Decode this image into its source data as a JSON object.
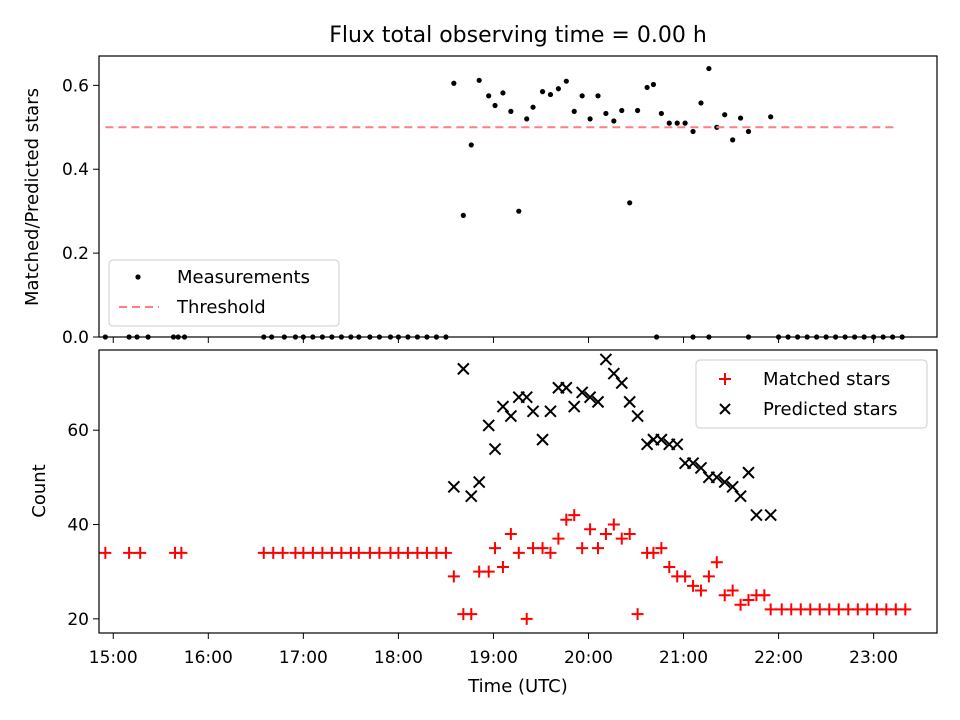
{
  "chart_data": [
    {
      "type": "scatter",
      "title": "Flux total observing time = 0.00 h",
      "xlabel": "",
      "ylabel": "Matched/Predicted stars",
      "xlim": [
        "14:51",
        "23:40"
      ],
      "ylim": [
        0,
        0.67
      ],
      "yticks": [
        "0.0",
        "0.2",
        "0.4",
        "0.6"
      ],
      "ytick_values": [
        0,
        0.2,
        0.4,
        0.6
      ],
      "legend_position": "lower-left",
      "legend": [
        "Measurements",
        "Threshold"
      ],
      "colors": {
        "measurements": "#000000",
        "threshold": "#ff7f7f"
      },
      "series": [
        {
          "name": "Measurements",
          "marker": "dot",
          "x": [
            "14:55",
            "15:10",
            "15:15",
            "15:22",
            "15:38",
            "15:41",
            "15:45",
            "16:35",
            "16:40",
            "16:48",
            "16:55",
            "17:00",
            "17:06",
            "17:12",
            "17:18",
            "17:24",
            "17:30",
            "17:35",
            "17:42",
            "17:48",
            "17:55",
            "18:00",
            "18:06",
            "18:12",
            "18:18",
            "18:24",
            "18:30",
            "18:35",
            "18:41",
            "18:46",
            "18:51",
            "18:57",
            "19:01",
            "19:06",
            "19:11",
            "19:16",
            "19:21",
            "19:25",
            "19:31",
            "19:36",
            "19:41",
            "19:46",
            "19:51",
            "19:56",
            "20:01",
            "20:06",
            "20:11",
            "20:16",
            "20:21",
            "20:26",
            "20:31",
            "20:37",
            "20:41",
            "20:46",
            "20:51",
            "20:56",
            "21:01",
            "21:06",
            "21:11",
            "21:16",
            "21:21",
            "21:26",
            "21:31",
            "21:36",
            "21:41",
            "21:55",
            "20:43",
            "21:06",
            "21:16",
            "21:41",
            "22:00",
            "22:06",
            "22:12",
            "22:18",
            "22:24",
            "22:30",
            "22:36",
            "22:42",
            "22:48",
            "22:54",
            "23:00",
            "23:06",
            "23:12",
            "23:18"
          ],
          "y": [
            0,
            0,
            0,
            0,
            0,
            0,
            0,
            0,
            0,
            0,
            0,
            0,
            0,
            0,
            0,
            0,
            0,
            0,
            0,
            0,
            0,
            0,
            0,
            0,
            0,
            0,
            0,
            0.605,
            0.29,
            0.458,
            0.612,
            0.575,
            0.552,
            0.582,
            0.538,
            0.3,
            0.52,
            0.548,
            0.585,
            0.578,
            0.592,
            0.61,
            0.538,
            0.575,
            0.52,
            0.575,
            0.533,
            0.515,
            0.54,
            0.32,
            0.54,
            0.595,
            0.602,
            0.533,
            0.51,
            0.51,
            0.51,
            0.49,
            0.558,
            0.64,
            0.5,
            0.53,
            0.47,
            0.522,
            0.49,
            0.525,
            0,
            0,
            0,
            0,
            0,
            0,
            0,
            0,
            0,
            0,
            0,
            0,
            0,
            0,
            0,
            0,
            0,
            0
          ]
        },
        {
          "name": "Threshold",
          "style": "dashed",
          "x": [
            "14:55",
            "23:15"
          ],
          "y": [
            0.5,
            0.5
          ]
        }
      ]
    },
    {
      "type": "scatter",
      "title": "",
      "xlabel": "Time (UTC)",
      "ylabel": "Count",
      "xlim": [
        "14:51",
        "23:40"
      ],
      "ylim": [
        17,
        77
      ],
      "xticks": [
        "15:00",
        "16:00",
        "17:00",
        "18:00",
        "19:00",
        "20:00",
        "21:00",
        "22:00",
        "23:00"
      ],
      "yticks": [
        "20",
        "40",
        "60"
      ],
      "ytick_values": [
        20,
        40,
        60
      ],
      "legend_position": "top-right",
      "legend": [
        "Matched stars",
        "Predicted stars"
      ],
      "colors": {
        "matched": "#ff0000",
        "predicted": "#000000"
      },
      "series": [
        {
          "name": "Matched stars",
          "marker": "plus",
          "x": [
            "14:55",
            "15:10",
            "15:17",
            "15:39",
            "15:43",
            "16:35",
            "16:41",
            "16:47",
            "16:55",
            "17:00",
            "17:06",
            "17:12",
            "17:18",
            "17:24",
            "17:30",
            "17:35",
            "17:42",
            "17:48",
            "17:55",
            "18:00",
            "18:06",
            "18:12",
            "18:18",
            "18:24",
            "18:30",
            "18:35",
            "18:41",
            "18:46",
            "18:51",
            "18:57",
            "19:01",
            "19:06",
            "19:11",
            "19:16",
            "19:21",
            "19:25",
            "19:31",
            "19:36",
            "19:41",
            "19:46",
            "19:51",
            "19:56",
            "20:01",
            "20:06",
            "20:11",
            "20:16",
            "20:21",
            "20:26",
            "20:31",
            "20:37",
            "20:41",
            "20:46",
            "20:51",
            "20:56",
            "21:01",
            "21:06",
            "21:11",
            "21:16",
            "21:21",
            "21:26",
            "21:31",
            "21:36",
            "21:41",
            "21:46",
            "21:51",
            "21:55",
            "22:02",
            "22:08",
            "22:14",
            "22:20",
            "22:26",
            "22:32",
            "22:38",
            "22:44",
            "22:50",
            "22:56",
            "23:02",
            "23:08",
            "23:14",
            "23:20"
          ],
          "y": [
            34,
            34,
            34,
            34,
            34,
            34,
            34,
            34,
            34,
            34,
            34,
            34,
            34,
            34,
            34,
            34,
            34,
            34,
            34,
            34,
            34,
            34,
            34,
            34,
            34,
            29,
            21,
            21,
            30,
            30,
            35,
            31,
            38,
            34,
            20,
            35,
            35,
            34,
            37,
            41,
            42,
            35,
            39,
            35,
            38,
            40,
            37,
            38,
            21,
            34,
            34,
            35,
            31,
            29,
            29,
            27,
            26,
            29,
            32,
            25,
            26,
            23,
            24,
            25,
            25,
            22,
            22,
            22,
            22,
            22,
            22,
            22,
            22,
            22,
            22,
            22,
            22,
            22,
            22,
            22
          ]
        },
        {
          "name": "Predicted stars",
          "marker": "x",
          "x": [
            "18:35",
            "18:41",
            "18:46",
            "18:51",
            "18:57",
            "19:01",
            "19:06",
            "19:11",
            "19:16",
            "19:21",
            "19:25",
            "19:31",
            "19:36",
            "19:41",
            "19:46",
            "19:51",
            "19:56",
            "20:01",
            "20:06",
            "20:11",
            "20:16",
            "20:21",
            "20:26",
            "20:31",
            "20:37",
            "20:41",
            "20:46",
            "20:51",
            "20:56",
            "21:01",
            "21:06",
            "21:11",
            "21:16",
            "21:21",
            "21:26",
            "21:31",
            "21:36",
            "21:41",
            "21:46",
            "21:55"
          ],
          "y": [
            48,
            73,
            46,
            49,
            61,
            56,
            65,
            63,
            67,
            67,
            64,
            58,
            64,
            69,
            69,
            65,
            68,
            67,
            66,
            75,
            72,
            70,
            66,
            63,
            57,
            58,
            58,
            57,
            57,
            53,
            53,
            52,
            50,
            50,
            49,
            48,
            46,
            51,
            42,
            42
          ]
        }
      ]
    }
  ]
}
